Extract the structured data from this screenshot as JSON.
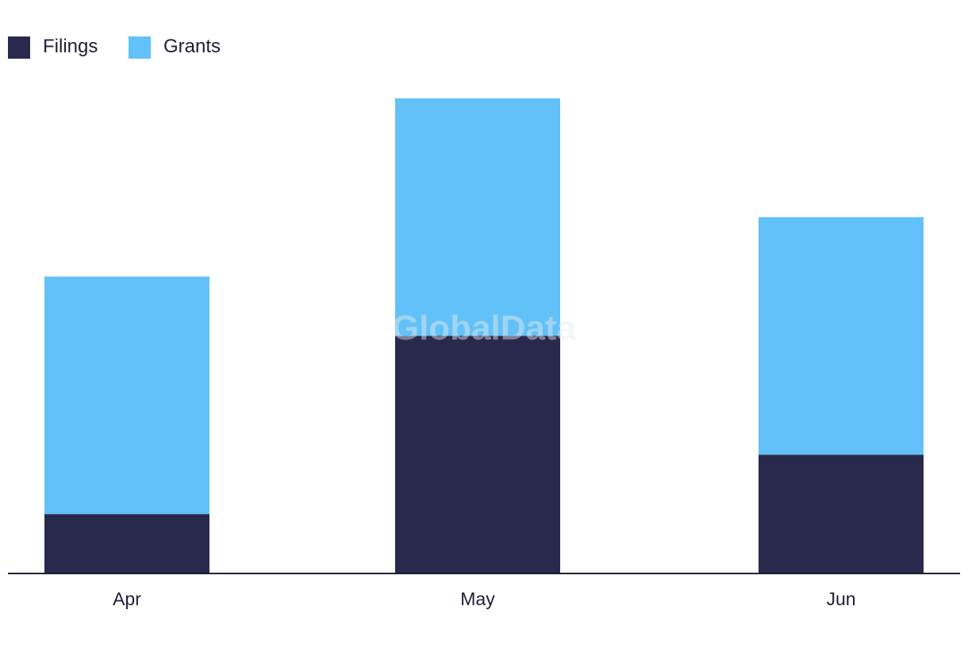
{
  "chart_data": {
    "type": "bar",
    "stacked": true,
    "categories": [
      "Apr",
      "May",
      "Jun"
    ],
    "series": [
      {
        "name": "Filings",
        "values": [
          1,
          4,
          2
        ],
        "color": "#28294c"
      },
      {
        "name": "Grants",
        "values": [
          4,
          4,
          4
        ],
        "color": "#62c1f8"
      }
    ],
    "ylim": [
      0,
      8
    ],
    "grid": false,
    "legend_position": "top-left",
    "watermark": "GlobalData"
  }
}
